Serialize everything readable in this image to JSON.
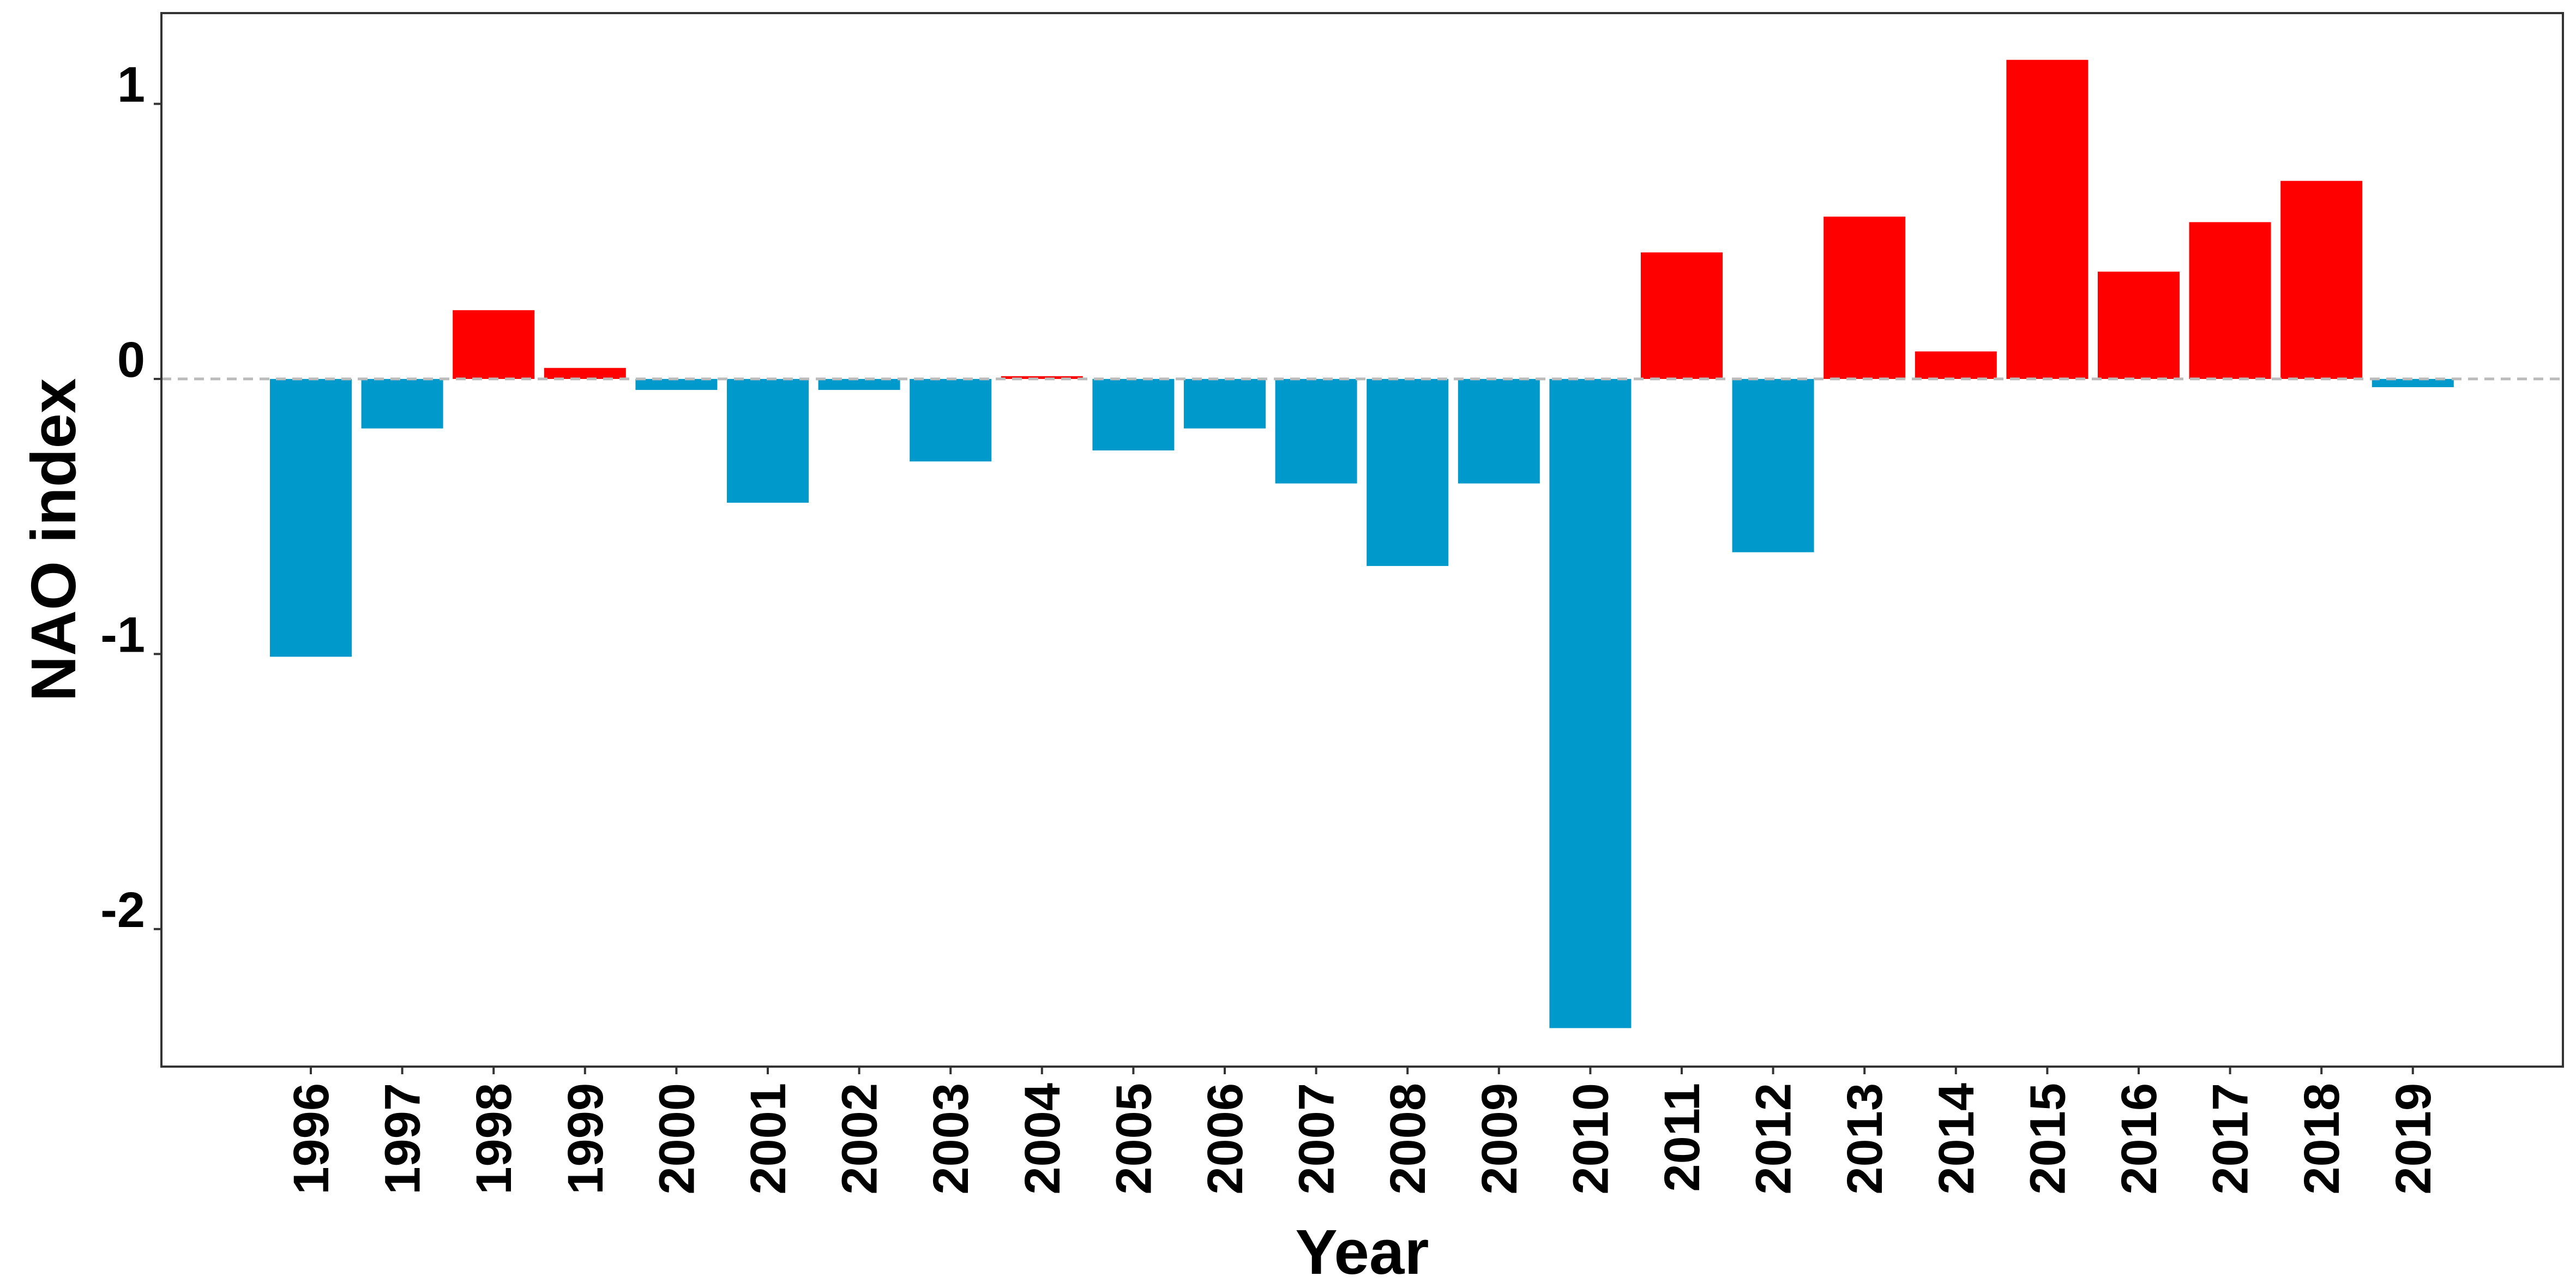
{
  "chart_data": {
    "type": "bar",
    "xlabel": "Year",
    "ylabel": "NAO index",
    "categories": [
      "1996",
      "1997",
      "1998",
      "1999",
      "2000",
      "2001",
      "2002",
      "2003",
      "2004",
      "2005",
      "2006",
      "2007",
      "2008",
      "2009",
      "2010",
      "2011",
      "2012",
      "2013",
      "2014",
      "2015",
      "2016",
      "2017",
      "2018",
      "2019"
    ],
    "values": [
      -1.01,
      -0.18,
      0.25,
      0.04,
      -0.04,
      -0.45,
      -0.04,
      -0.3,
      0.01,
      -0.26,
      -0.18,
      -0.38,
      -0.68,
      -0.38,
      -2.36,
      0.46,
      -0.63,
      0.59,
      0.1,
      1.16,
      0.39,
      0.57,
      0.72,
      -0.03
    ],
    "ylim": [
      -2.5,
      1.33
    ],
    "yticks": [
      1,
      0,
      -1,
      -2
    ],
    "ytick_labels": [
      "1",
      "0",
      "-1",
      "-2"
    ],
    "zero_line": "dashed",
    "colors": {
      "positive": "#ff0000",
      "negative": "#0099cc",
      "zero_line": "#bbbbbb",
      "frame": "#333333"
    },
    "grid": false,
    "legend": "none"
  }
}
